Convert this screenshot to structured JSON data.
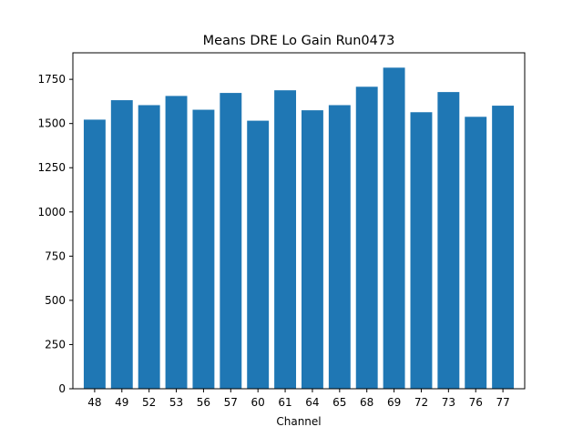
{
  "chart_data": {
    "type": "bar",
    "title": "Means DRE Lo Gain Run0473",
    "xlabel": "Channel",
    "ylabel": "",
    "categories": [
      "48",
      "49",
      "52",
      "53",
      "56",
      "57",
      "60",
      "61",
      "64",
      "65",
      "68",
      "69",
      "72",
      "73",
      "76",
      "77"
    ],
    "values": [
      1522,
      1632,
      1604,
      1656,
      1578,
      1673,
      1516,
      1688,
      1575,
      1604,
      1708,
      1816,
      1564,
      1678,
      1538,
      1601
    ],
    "ylim": [
      0,
      1900
    ],
    "yticks": [
      0,
      250,
      500,
      750,
      1000,
      1250,
      1500,
      1750
    ],
    "bar_color": "#1f77b4",
    "grid": false,
    "legend": "none"
  }
}
